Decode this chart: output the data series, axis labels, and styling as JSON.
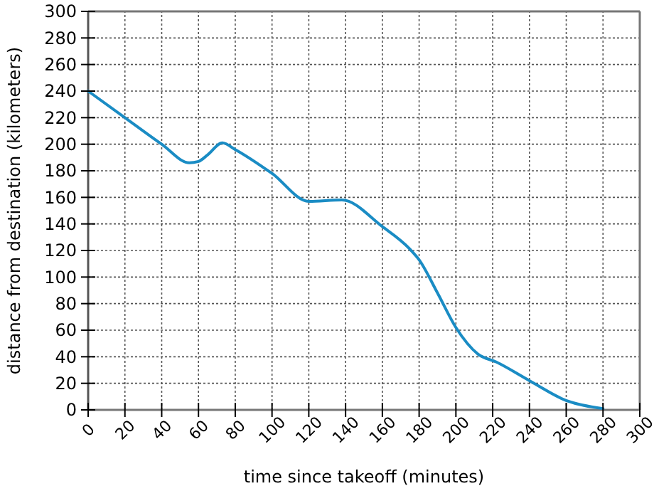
{
  "chart_data": {
    "type": "line",
    "xlabel": "time since takeoff (minutes)",
    "ylabel": "distance from destination (kilometers)",
    "x": [
      0,
      20,
      40,
      55,
      60,
      65,
      73,
      80,
      100,
      120,
      138,
      160,
      175,
      180,
      190,
      200,
      212,
      222,
      240,
      260,
      280
    ],
    "series": [
      {
        "color": "#1a8cc4",
        "values": [
          240,
          220,
          200,
          186,
          187,
          192,
          201,
          196,
          178,
          157,
          158,
          138,
          121,
          113,
          88,
          62,
          42,
          36,
          22,
          7,
          1
        ]
      }
    ],
    "xlim": [
      0,
      300
    ],
    "xticks": [
      0,
      20,
      40,
      60,
      80,
      100,
      120,
      140,
      160,
      180,
      200,
      220,
      240,
      260,
      280,
      300
    ],
    "ylim": [
      0,
      300
    ],
    "yticks": [
      0,
      20,
      40,
      60,
      80,
      100,
      120,
      140,
      160,
      180,
      200,
      220,
      240,
      260,
      280,
      300
    ],
    "grid": true,
    "marker": "none",
    "line_style": "solid"
  }
}
